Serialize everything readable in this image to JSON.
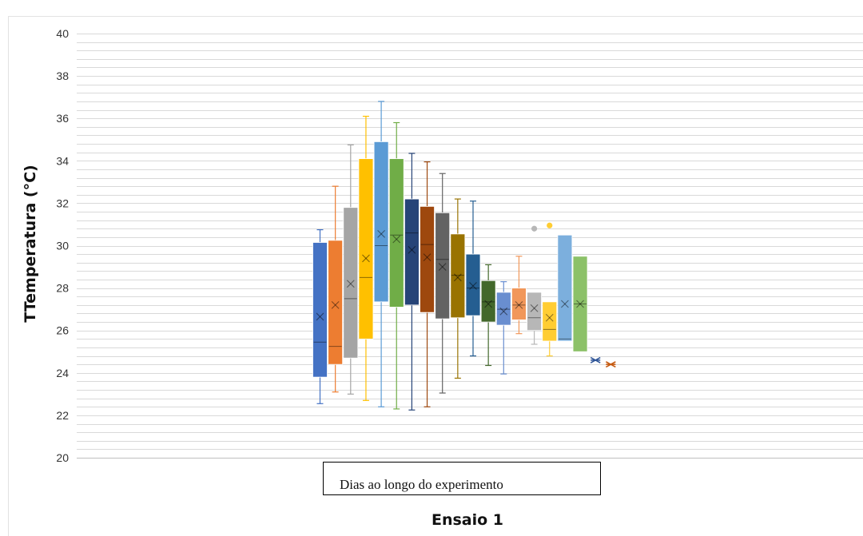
{
  "caption": "Ensaio 1",
  "chart_data": {
    "type": "box",
    "title": "",
    "ylabel": "TTemperatura (°C)",
    "xlabel": "Dias ao longo do experimento",
    "ylim": [
      20,
      40
    ],
    "yticks": [
      20,
      22,
      24,
      26,
      28,
      30,
      32,
      34,
      36,
      38,
      40
    ],
    "minor_grid_step": 0.4,
    "grid": true,
    "series": [
      {
        "color": "#4472c4",
        "min": 22.55,
        "q1": 23.8,
        "median": 25.45,
        "q3": 30.15,
        "max": 30.75,
        "mean": 26.65,
        "outliers": []
      },
      {
        "color": "#ed7d31",
        "min": 23.1,
        "q1": 24.4,
        "median": 25.25,
        "q3": 30.25,
        "max": 32.8,
        "mean": 27.2,
        "outliers": []
      },
      {
        "color": "#a5a5a5",
        "min": 23.0,
        "q1": 24.7,
        "median": 27.5,
        "q3": 31.8,
        "max": 34.75,
        "mean": 28.2,
        "outliers": []
      },
      {
        "color": "#ffc000",
        "min": 22.7,
        "q1": 25.6,
        "median": 28.5,
        "q3": 34.1,
        "max": 36.1,
        "mean": 29.4,
        "outliers": []
      },
      {
        "color": "#5b9bd5",
        "min": 22.4,
        "q1": 27.35,
        "median": 30.0,
        "q3": 34.9,
        "max": 36.8,
        "mean": 30.55,
        "outliers": []
      },
      {
        "color": "#70ad47",
        "min": 22.3,
        "q1": 27.1,
        "median": 30.5,
        "q3": 34.1,
        "max": 35.8,
        "mean": 30.3,
        "outliers": []
      },
      {
        "color": "#264478",
        "min": 22.25,
        "q1": 27.2,
        "median": 30.6,
        "q3": 32.2,
        "max": 34.35,
        "mean": 29.8,
        "outliers": []
      },
      {
        "color": "#9e480e",
        "min": 22.4,
        "q1": 26.85,
        "median": 30.05,
        "q3": 31.85,
        "max": 33.95,
        "mean": 29.45,
        "outliers": []
      },
      {
        "color": "#636363",
        "min": 23.05,
        "q1": 26.55,
        "median": 29.35,
        "q3": 31.55,
        "max": 33.4,
        "mean": 29.0,
        "outliers": []
      },
      {
        "color": "#997300",
        "min": 23.75,
        "q1": 26.6,
        "median": 28.6,
        "q3": 30.55,
        "max": 32.2,
        "mean": 28.5,
        "outliers": []
      },
      {
        "color": "#255e91",
        "min": 24.8,
        "q1": 26.7,
        "median": 28.0,
        "q3": 29.6,
        "max": 32.1,
        "mean": 28.1,
        "outliers": []
      },
      {
        "color": "#43682b",
        "min": 24.35,
        "q1": 26.4,
        "median": 27.35,
        "q3": 28.35,
        "max": 29.1,
        "mean": 27.25,
        "outliers": []
      },
      {
        "color": "#698ed0",
        "min": 23.95,
        "q1": 26.25,
        "median": 27.0,
        "q3": 27.8,
        "max": 28.3,
        "mean": 26.9,
        "outliers": []
      },
      {
        "color": "#f1975a",
        "min": 25.85,
        "q1": 26.5,
        "median": 27.2,
        "q3": 28.0,
        "max": 29.5,
        "mean": 27.2,
        "outliers": []
      },
      {
        "color": "#b7b7b7",
        "min": 25.35,
        "q1": 26.0,
        "median": 26.6,
        "q3": 27.8,
        "max": 27.8,
        "mean": 27.05,
        "outliers": [
          30.8
        ]
      },
      {
        "color": "#ffcd33",
        "min": 24.8,
        "q1": 25.5,
        "median": 26.05,
        "q3": 27.35,
        "max": 27.35,
        "mean": 26.6,
        "outliers": [
          30.95
        ]
      },
      {
        "color": "#7cafdd",
        "min": 25.5,
        "q1": 25.5,
        "median": 25.6,
        "q3": 30.5,
        "max": 30.5,
        "mean": 27.25,
        "outliers": []
      },
      {
        "color": "#8cc168",
        "min": 25.0,
        "q1": 25.0,
        "median": 27.25,
        "q3": 29.5,
        "max": 29.5,
        "mean": 27.25,
        "outliers": []
      },
      {
        "color": "#2f5597",
        "min": 24.6,
        "q1": 24.6,
        "median": 24.6,
        "q3": 24.6,
        "max": 24.6,
        "mean": 24.6,
        "outliers": []
      },
      {
        "color": "#c55a11",
        "min": 24.4,
        "q1": 24.4,
        "median": 24.4,
        "q3": 24.4,
        "max": 24.4,
        "mean": 24.4,
        "outliers": []
      }
    ]
  }
}
